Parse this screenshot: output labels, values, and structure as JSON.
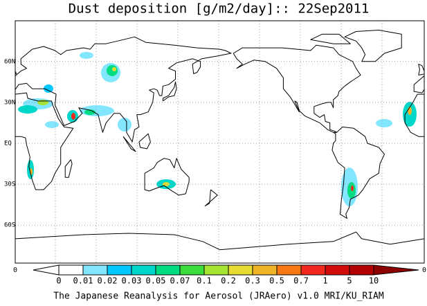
{
  "title": "Dust deposition [g/m2/day]:: 22Sep2011",
  "lat_labels": [
    "60N",
    "30N",
    "EQ",
    "30S",
    "60S"
  ],
  "corner_labels": [
    "0",
    "0"
  ],
  "colorbar": {
    "labels": [
      "0",
      "0.01",
      "0.02",
      "0.03",
      "0.05",
      "0.07",
      "0.1",
      "0.2",
      "0.3",
      "0.5",
      "0.7",
      "1",
      "5",
      "10"
    ],
    "colors": [
      "#ffffff",
      "#ffffff",
      "#82e6ff",
      "#00c8ff",
      "#00d7c8",
      "#00dc82",
      "#3cdc3c",
      "#a5e632",
      "#e6dc32",
      "#f0b428",
      "#fa7814",
      "#f0281e",
      "#d20a0a",
      "#b40000",
      "#8c0000"
    ]
  },
  "footer": "The Japanese Reanalysis for Aerosol (JRAero) v1.0 MRI/KU_RIAM"
}
